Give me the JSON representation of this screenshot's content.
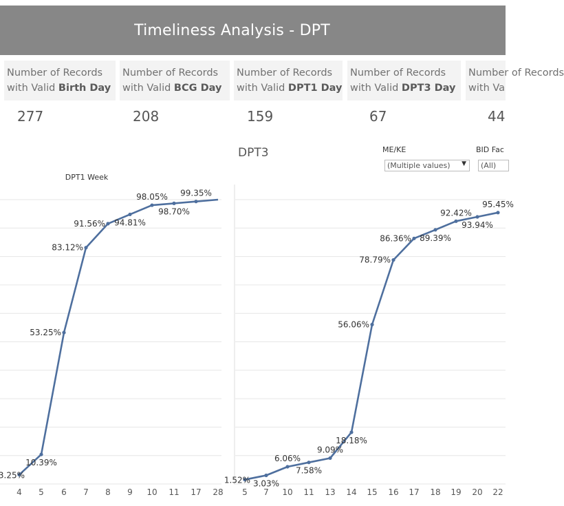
{
  "header": {
    "title": "Timeliness Analysis - DPT"
  },
  "kpis": [
    {
      "line1": "Number of Records",
      "prefix": "with Valid ",
      "bold": "Birth Day",
      "value": "277"
    },
    {
      "line1": "Number of Records",
      "prefix": "with Valid ",
      "bold": "BCG Day",
      "value": "208"
    },
    {
      "line1": "Number of Records",
      "prefix": "with Valid ",
      "bold": "DPT1 Day",
      "value": "159"
    },
    {
      "line1": "Number of Records",
      "prefix": "with Valid ",
      "bold": "DPT3 Day",
      "value": "67"
    },
    {
      "line1": "Number of Records",
      "prefix": "with Va",
      "bold": "",
      "value": "44"
    }
  ],
  "filters": {
    "me_ke": {
      "label": "ME/KE",
      "value": "(Multiple values)"
    },
    "bid": {
      "label": "BID Fac",
      "value": "(All)"
    }
  },
  "colors": {
    "line": "#4e6f9e",
    "grid": "#e6e6e6",
    "banner": "#878787",
    "kpi_bg": "#f3f3f3"
  },
  "chart_data": [
    {
      "type": "line",
      "title": "",
      "xlabel": "DPT1 Week",
      "categories": [
        "4",
        "5",
        "6",
        "7",
        "8",
        "9",
        "10",
        "11",
        "17",
        "28"
      ],
      "values": [
        3.25,
        10.39,
        53.25,
        83.12,
        91.56,
        94.81,
        98.05,
        98.7,
        99.35,
        100
      ],
      "labels": [
        "3.25%",
        "10.39%",
        "53.25%",
        "83.12%",
        "91.56%",
        "94.81%",
        "98.05%",
        "98.70%",
        "99.35%",
        ""
      ],
      "ylim": [
        0,
        100
      ],
      "grid": true
    },
    {
      "type": "line",
      "title": "DPT3",
      "xlabel": "",
      "categories": [
        "5",
        "7",
        "10",
        "11",
        "13",
        "14",
        "15",
        "16",
        "17",
        "18",
        "19",
        "20",
        "22"
      ],
      "values": [
        1.52,
        3.03,
        6.06,
        7.58,
        9.09,
        18.18,
        56.06,
        78.79,
        86.36,
        89.39,
        92.42,
        93.94,
        95.45
      ],
      "labels": [
        "1.52%",
        "3.03%",
        "6.06%",
        "7.58%",
        "9.09%",
        "18.18%",
        "56.06%",
        "78.79%",
        "86.36%",
        "89.39%",
        "92.42%",
        "93.94%",
        "95.45%"
      ],
      "ylim": [
        0,
        100
      ],
      "grid": true
    }
  ]
}
